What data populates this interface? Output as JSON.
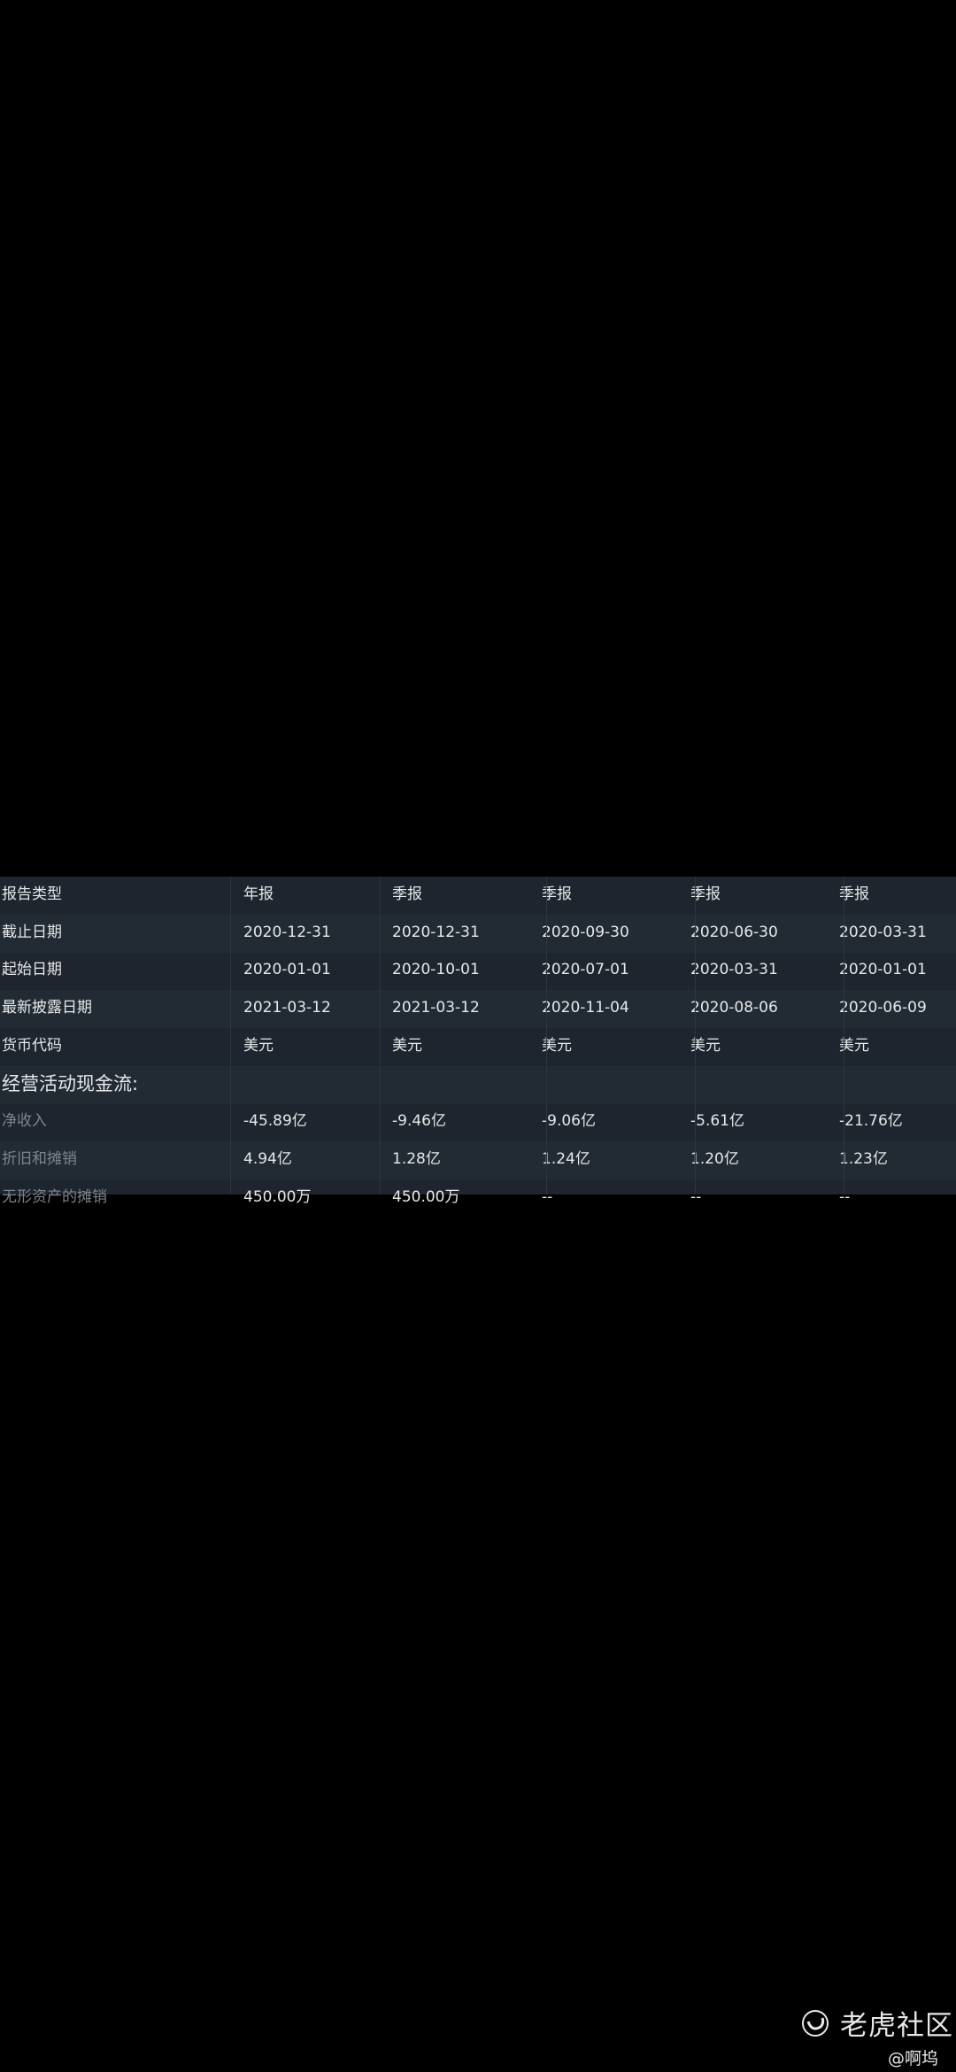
{
  "table": {
    "columns": [
      "年报",
      "季报",
      "季报",
      "季报",
      "季报"
    ],
    "header_label": "报告类型",
    "rows": [
      {
        "label": "截止日期",
        "values": [
          "2020-12-31",
          "2020-12-31",
          "2020-09-30",
          "2020-06-30",
          "2020-03-31"
        ]
      },
      {
        "label": "起始日期",
        "values": [
          "2020-01-01",
          "2020-10-01",
          "2020-07-01",
          "2020-03-31",
          "2020-01-01"
        ]
      },
      {
        "label": "最新披露日期",
        "values": [
          "2021-03-12",
          "2021-03-12",
          "2020-11-04",
          "2020-08-06",
          "2020-06-09"
        ]
      },
      {
        "label": "货币代码",
        "values": [
          "美元",
          "美元",
          "美元",
          "美元",
          "美元"
        ]
      },
      {
        "label": "经营活动现金流:",
        "section": true,
        "values": [
          "",
          "",
          "",
          "",
          ""
        ]
      },
      {
        "label": "净收入",
        "dim": true,
        "values": [
          "-45.89亿",
          "-9.46亿",
          "-9.06亿",
          "-5.61亿",
          "-21.76亿"
        ]
      },
      {
        "label": "折旧和摊销",
        "dim": true,
        "values": [
          "4.94亿",
          "1.28亿",
          "1.24亿",
          "1.20亿",
          "1.23亿"
        ]
      },
      {
        "label": "无形资产的摊销",
        "dim": true,
        "values": [
          "450.00万",
          "450.00万",
          "--",
          "--",
          "--"
        ]
      }
    ]
  },
  "watermark": {
    "brand": "老虎社区",
    "user": "@啊坞",
    "icon": "tiger-logo-icon"
  },
  "colors": {
    "background": "#1e252e",
    "row_alt": "#222a34",
    "text": "#e6e8ea",
    "dim_text": "#7c848e"
  }
}
